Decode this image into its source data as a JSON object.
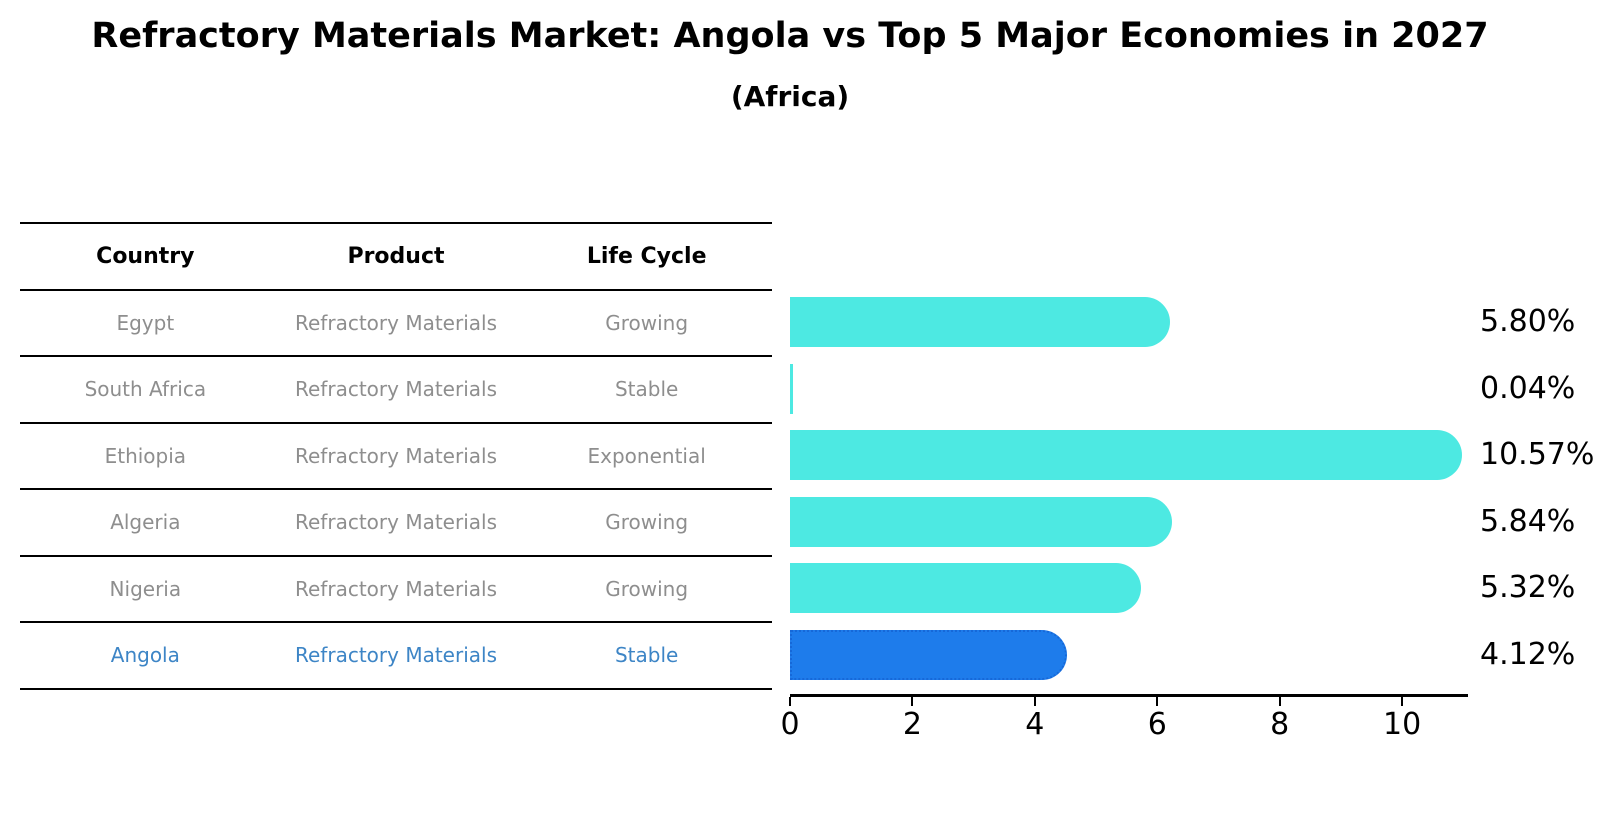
{
  "title": "Refractory Materials Market: Angola vs Top 5 Major Economies in 2027",
  "subtitle": "(Africa)",
  "colors": {
    "bar_default": "#4DE9E2",
    "bar_highlight": "#1E7CEB",
    "bar_highlight_border": "#1668D8",
    "highlight_text": "#3D85C6",
    "muted_text": "#8E8E8E",
    "text": "#000000"
  },
  "table": {
    "headers": [
      "Country",
      "Product",
      "Life Cycle"
    ],
    "rows": [
      {
        "country": "Egypt",
        "product": "Refractory Materials",
        "life_cycle": "Growing",
        "highlight": false
      },
      {
        "country": "South Africa",
        "product": "Refractory Materials",
        "life_cycle": "Stable",
        "highlight": false
      },
      {
        "country": "Ethiopia",
        "product": "Refractory Materials",
        "life_cycle": "Exponential",
        "highlight": false
      },
      {
        "country": "Algeria",
        "product": "Refractory Materials",
        "life_cycle": "Growing",
        "highlight": false
      },
      {
        "country": "Nigeria",
        "product": "Refractory Materials",
        "life_cycle": "Growing",
        "highlight": false
      },
      {
        "country": "Angola",
        "product": "Refractory Materials",
        "life_cycle": "Stable",
        "highlight": true
      }
    ]
  },
  "chart_data": {
    "type": "bar",
    "orientation": "horizontal",
    "title": "Refractory Materials Market: Angola vs Top 5 Major Economies in 2027 (Africa)",
    "categories": [
      "Egypt",
      "South Africa",
      "Ethiopia",
      "Algeria",
      "Nigeria",
      "Angola"
    ],
    "values": [
      5.8,
      0.04,
      10.57,
      5.84,
      5.32,
      4.12
    ],
    "value_labels": [
      "5.80%",
      "0.04%",
      "10.57%",
      "5.84%",
      "5.32%",
      "4.12%"
    ],
    "highlight_category": "Angola",
    "xlabel": "",
    "ylabel": "",
    "xlim": [
      0,
      11.06
    ],
    "xticks": [
      0,
      2,
      4,
      6,
      8,
      10
    ],
    "grid": false,
    "legend": false,
    "value_label_position": "right-outside"
  }
}
